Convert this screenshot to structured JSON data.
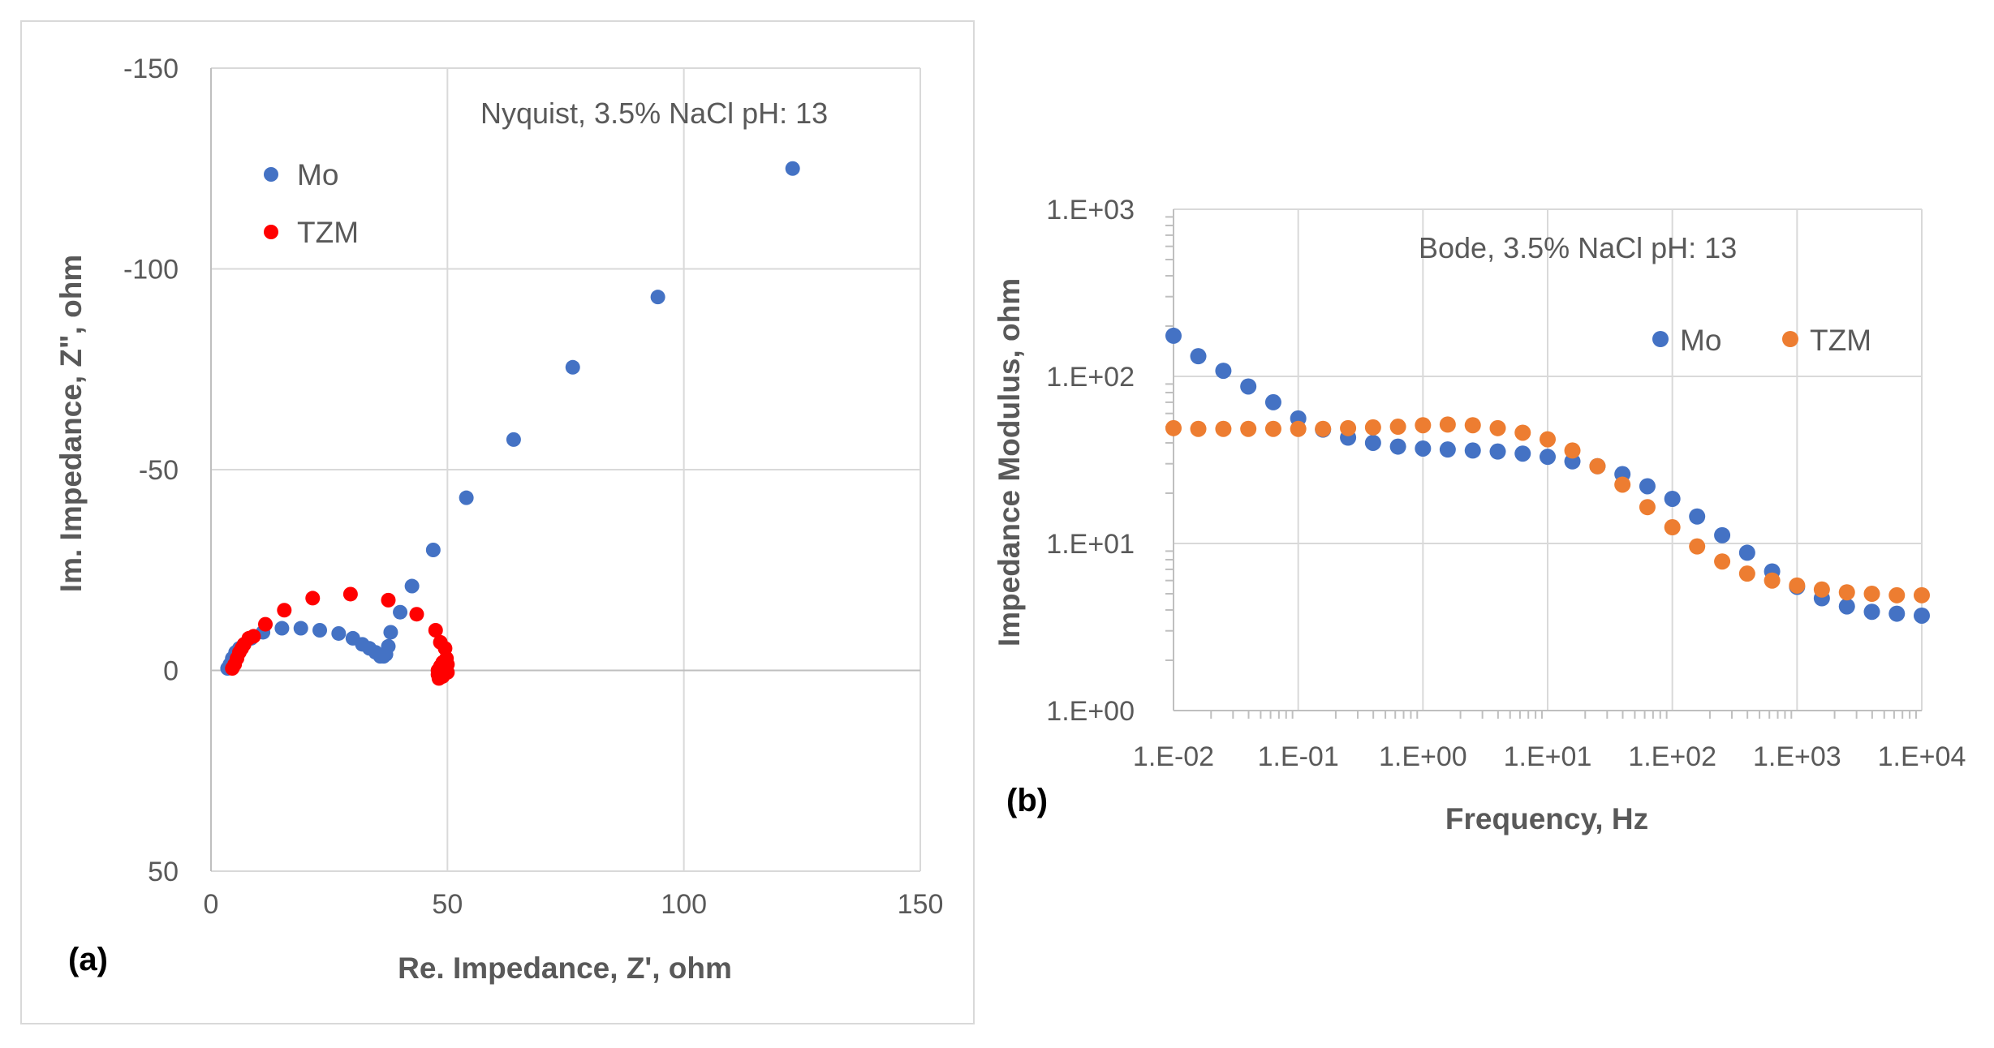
{
  "colors": {
    "mo_a": "#4472C4",
    "tzm_a": "#FF0000",
    "mo_b": "#4472C4",
    "tzm_b": "#ED7D31",
    "grid": "#D9D9D9",
    "axis": "#BFBFBF",
    "text": "#595959"
  },
  "chart_data": [
    {
      "panel_label": "(a)",
      "type": "scatter",
      "title": "Nyquist, 3.5% NaCl pH: 13",
      "xlabel": "Re. Impedance, Z', ohm",
      "ylabel": "Im. Impedance, Z\", ohm",
      "xlim": [
        0,
        150
      ],
      "ylim": [
        -150,
        50
      ],
      "y_reversed": true,
      "grid": true,
      "x_ticks": [
        0,
        50,
        100,
        150
      ],
      "y_ticks": [
        -150,
        -100,
        -50,
        0,
        50
      ],
      "x_tick_labels": [
        "0",
        "50",
        "100",
        "150"
      ],
      "y_tick_labels": [
        "-150",
        "-100",
        "-50",
        "0",
        "50"
      ],
      "legend_position": "top-left",
      "series": [
        {
          "name": "Mo",
          "x": [
            3.5,
            4.0,
            4.5,
            5.2,
            6.0,
            7.0,
            8.5,
            11.0,
            15.0,
            19.0,
            23.0,
            27.0,
            30.0,
            32.0,
            33.5,
            34.8,
            35.8,
            36.5,
            37.0,
            37.5,
            38.0,
            40.0,
            42.5,
            47.0,
            54.0,
            64.0,
            76.5,
            94.5,
            123.0
          ],
          "y": [
            -0.5,
            -1.5,
            -3.0,
            -4.5,
            -5.5,
            -6.5,
            -8.0,
            -9.5,
            -10.5,
            -10.5,
            -10.0,
            -9.2,
            -8.0,
            -6.5,
            -5.5,
            -4.5,
            -3.5,
            -3.5,
            -4.0,
            -6.0,
            -9.5,
            -14.5,
            -21.0,
            -30.0,
            -43.0,
            -57.5,
            -75.5,
            -93.0,
            -125.0
          ]
        },
        {
          "name": "TZM",
          "x": [
            4.5,
            5.0,
            5.5,
            6.0,
            6.5,
            7.0,
            8.0,
            9.0,
            11.5,
            15.5,
            21.5,
            29.5,
            37.5,
            43.5,
            47.5,
            48.5,
            49.5,
            49.8,
            50.0,
            49.5,
            49.0,
            48.5,
            48.2,
            48.0,
            48.0,
            48.5,
            49.0,
            49.5,
            50.0,
            49.0
          ],
          "y": [
            -0.5,
            -1.5,
            -3.0,
            -4.5,
            -5.5,
            -6.5,
            -8.0,
            -8.5,
            -11.5,
            -15.0,
            -18.0,
            -19.0,
            -17.5,
            -14.0,
            -10.0,
            -7.0,
            -5.5,
            -3.0,
            -1.5,
            0.0,
            1.0,
            1.5,
            2.0,
            1.0,
            0.0,
            -1.0,
            -2.0,
            -0.5,
            0.5,
            1.5
          ]
        }
      ]
    },
    {
      "panel_label": "(b)",
      "type": "scatter",
      "title": "Bode, 3.5% NaCl pH: 13",
      "xlabel": "Frequency, Hz",
      "ylabel": "Impedance Modulus, ohm",
      "x_scale": "log",
      "y_scale": "log",
      "xlim": [
        0.01,
        10000
      ],
      "ylim": [
        1,
        1000
      ],
      "grid": true,
      "x_ticks": [
        0.01,
        0.1,
        1,
        10,
        100,
        1000,
        10000
      ],
      "y_ticks": [
        1,
        10,
        100,
        1000
      ],
      "x_tick_labels": [
        "1.E-02",
        "1.E-01",
        "1.E+00",
        "1.E+01",
        "1.E+02",
        "1.E+03",
        "1.E+04"
      ],
      "y_tick_labels": [
        "1.E+00",
        "1.E+01",
        "1.E+02",
        "1.E+03"
      ],
      "legend_position": "top-right",
      "series": [
        {
          "name": "Mo",
          "x": [
            0.01,
            0.0158,
            0.0251,
            0.0398,
            0.0631,
            0.1,
            0.158,
            0.251,
            0.398,
            0.631,
            1.0,
            1.58,
            2.51,
            3.98,
            6.31,
            10.0,
            15.8,
            25.1,
            39.8,
            63.1,
            100,
            158,
            251,
            398,
            631,
            1000,
            1580,
            2510,
            3980,
            6310,
            10000
          ],
          "y": [
            175,
            132,
            108,
            87,
            70,
            56,
            48,
            43,
            40,
            38,
            37,
            36.5,
            36,
            35.5,
            34.5,
            33,
            31,
            29,
            26,
            22,
            18.5,
            14.5,
            11.2,
            8.8,
            6.8,
            5.5,
            4.7,
            4.2,
            3.9,
            3.8,
            3.7
          ]
        },
        {
          "name": "TZM",
          "x": [
            0.01,
            0.0158,
            0.0251,
            0.0398,
            0.0631,
            0.1,
            0.158,
            0.251,
            0.398,
            0.631,
            1.0,
            1.58,
            2.51,
            3.98,
            6.31,
            10.0,
            15.8,
            25.1,
            39.8,
            63.1,
            100,
            158,
            251,
            398,
            631,
            1000,
            1580,
            2510,
            3980,
            6310,
            10000
          ],
          "y": [
            49,
            48.5,
            48.5,
            48.5,
            48.5,
            48.5,
            48.5,
            49,
            49.5,
            50,
            51,
            51.5,
            51,
            49,
            46,
            42,
            36,
            29,
            22.5,
            16.5,
            12.5,
            9.6,
            7.8,
            6.6,
            6.0,
            5.6,
            5.3,
            5.1,
            5.0,
            4.9,
            4.9
          ]
        }
      ]
    }
  ]
}
